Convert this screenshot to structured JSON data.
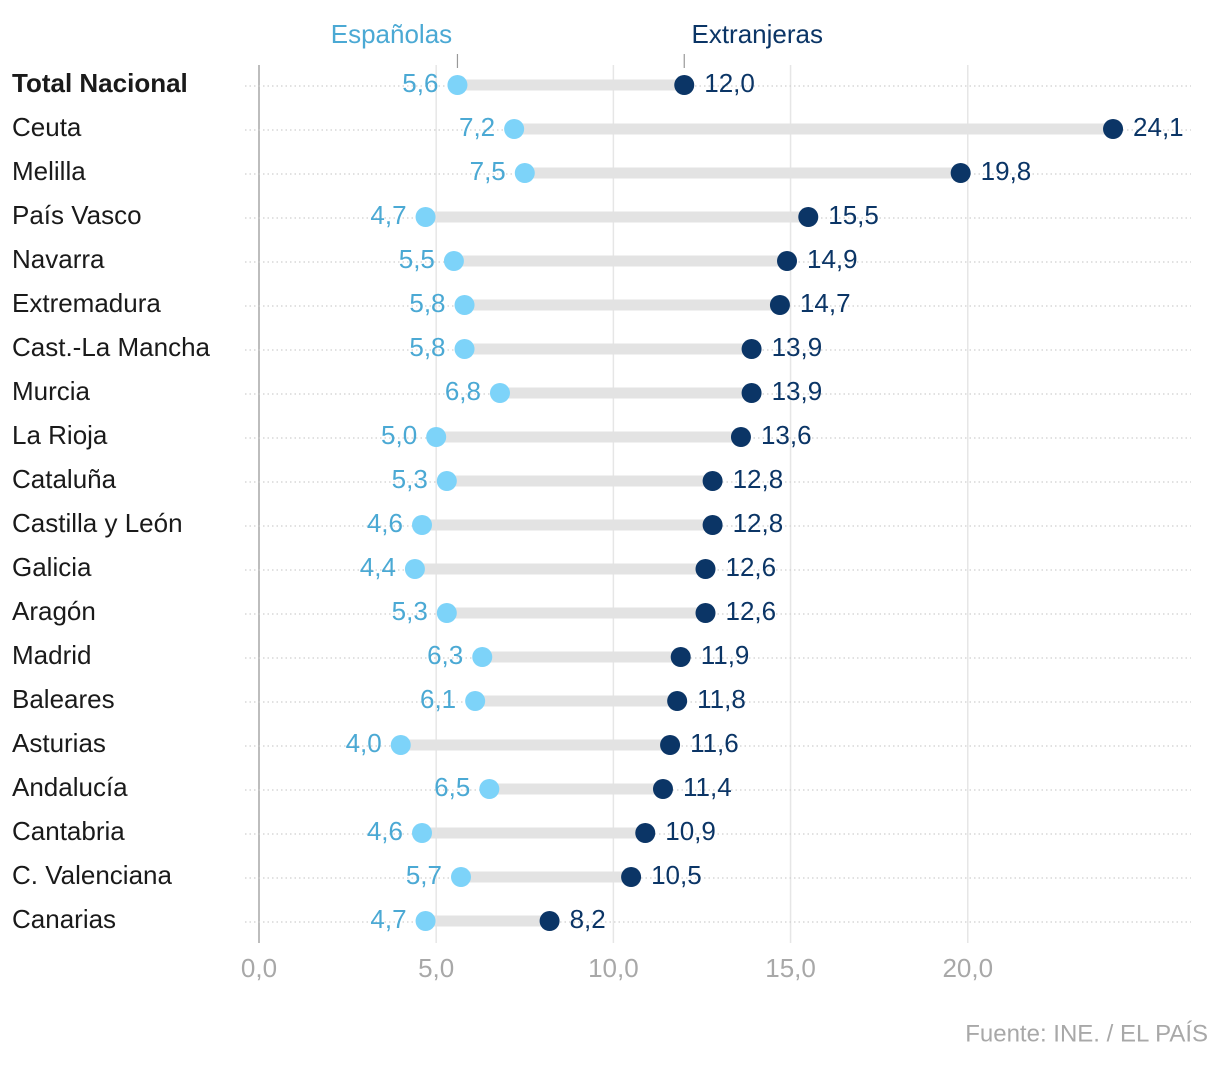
{
  "chart_data": {
    "type": "dumbbell",
    "source": "Fuente: INE. / EL PAÍS",
    "categories": [
      "Total Nacional",
      "Ceuta",
      "Melilla",
      "País Vasco",
      "Navarra",
      "Extremadura",
      "Cast.-La Mancha",
      "Murcia",
      "La Rioja",
      "Cataluña",
      "Castilla y León",
      "Galicia",
      "Aragón",
      "Madrid",
      "Baleares",
      "Asturias",
      "Andalucía",
      "Cantabria",
      "C. Valenciana",
      "Canarias"
    ],
    "series": [
      {
        "name": "Españolas",
        "color": "#7dd3f9",
        "label_color": "#4ba9d4",
        "values": [
          5.6,
          7.2,
          7.5,
          4.7,
          5.5,
          5.8,
          5.8,
          6.8,
          5.0,
          5.3,
          4.6,
          4.4,
          5.3,
          6.3,
          6.1,
          4.0,
          6.5,
          4.6,
          5.7,
          4.7
        ],
        "value_labels": [
          "5,6",
          "7,2",
          "7,5",
          "4,7",
          "5,5",
          "5,8",
          "5,8",
          "6,8",
          "5,0",
          "5,3",
          "4,6",
          "4,4",
          "5,3",
          "6,3",
          "6,1",
          "4,0",
          "6,5",
          "4,6",
          "5,7",
          "4,7"
        ]
      },
      {
        "name": "Extranjeras",
        "color": "#0b3566",
        "label_color": "#0b3566",
        "values": [
          12.0,
          24.1,
          19.8,
          15.5,
          14.9,
          14.7,
          13.9,
          13.9,
          13.6,
          12.8,
          12.8,
          12.6,
          12.6,
          11.9,
          11.8,
          11.6,
          11.4,
          10.9,
          10.5,
          8.2
        ],
        "value_labels": [
          "12,0",
          "24,1",
          "19,8",
          "15,5",
          "14,9",
          "14,7",
          "13,9",
          "13,9",
          "13,6",
          "12,8",
          "12,8",
          "12,6",
          "12,6",
          "11,9",
          "11,8",
          "11,6",
          "11,4",
          "10,9",
          "10,5",
          "8,2"
        ]
      }
    ],
    "xlim": [
      0,
      26.3
    ],
    "xticks": [
      {
        "value": 0,
        "label": "0,0"
      },
      {
        "value": 5,
        "label": "5,0"
      },
      {
        "value": 10,
        "label": "10,0"
      },
      {
        "value": 15,
        "label": "15,0"
      },
      {
        "value": 20,
        "label": "20,0"
      }
    ],
    "grid": true
  }
}
